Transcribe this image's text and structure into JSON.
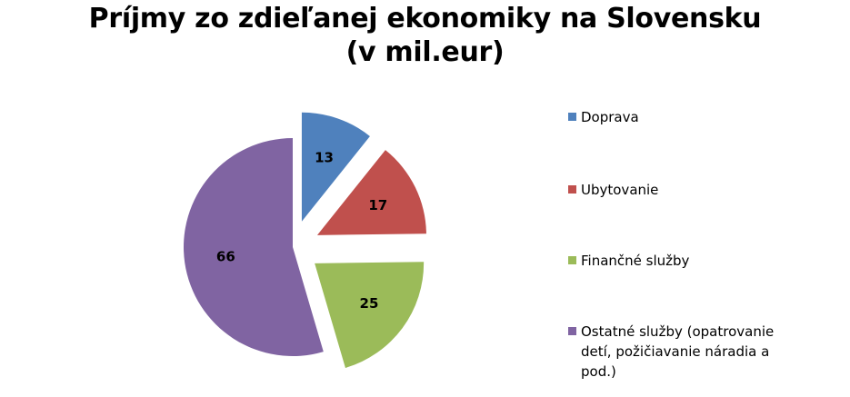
{
  "chart_data": {
    "type": "pie",
    "title": "Príjmy zo zdieľanej ekonomiky na Slovensku",
    "subtitle": "(v mil.eur)",
    "exploded": true,
    "legend_position": "right",
    "categories": [
      "Doprava",
      "Ubytovanie",
      "Finančné služby",
      "Ostatné služby (opatrovanie detí, požičiavanie náradia a pod.)"
    ],
    "values": [
      13,
      17,
      25,
      66
    ],
    "data_labels": [
      "13",
      "17",
      "25",
      "66"
    ],
    "colors": [
      "#4F81BD",
      "#C0504D",
      "#9BBB59",
      "#8064A2"
    ]
  }
}
